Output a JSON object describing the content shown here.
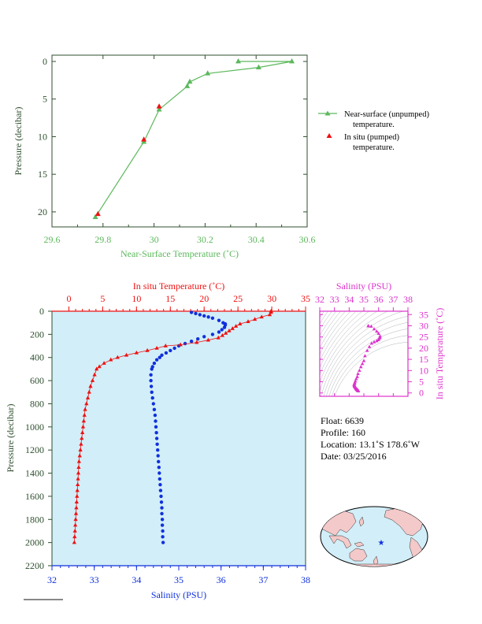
{
  "top_chart": {
    "xlabel": "Near-Surface Temperature (˚C)",
    "ylabel": "Pressure (decibar)",
    "xlim": [
      29.6,
      30.6
    ],
    "ylim": [
      0,
      22
    ],
    "xticks": [
      "29.6",
      "29.8",
      "30",
      "30.2",
      "30.4",
      "30.6"
    ],
    "yticks": [
      "0",
      "5",
      "10",
      "15",
      "20"
    ],
    "legend": [
      {
        "label_line1": "Near-surface (unpumped)",
        "label_line2": "temperature."
      },
      {
        "label_line1": "In situ (pumped)",
        "label_line2": "temperature."
      }
    ]
  },
  "main_chart": {
    "top_axis_label": "In situ Temperature (˚C)",
    "bottom_axis_label": "Salinity (PSU)",
    "ylabel": "Pressure (decibar)",
    "temp_ticks": [
      "0",
      "5",
      "10",
      "15",
      "20",
      "25",
      "30",
      "35"
    ],
    "sal_ticks": [
      "32",
      "33",
      "34",
      "35",
      "36",
      "37",
      "38"
    ],
    "pressure_ticks": [
      "0",
      "200",
      "400",
      "600",
      "800",
      "1000",
      "1200",
      "1400",
      "1600",
      "1800",
      "2000",
      "2200"
    ]
  },
  "ts_chart": {
    "top_label": "Salinity (PSU)",
    "right_label": "In situ Temperature (˚C)",
    "sal_ticks": [
      "32",
      "33",
      "34",
      "35",
      "36",
      "37",
      "38"
    ],
    "temp_ticks": [
      "0",
      "5",
      "10",
      "15",
      "20",
      "25",
      "30",
      "35"
    ]
  },
  "info": {
    "float": "Float:  6639",
    "profile": "Profile:  160",
    "location": "Location:  13.1˚S   178.6˚W",
    "date": "Date:  03/25/2016"
  },
  "colors": {
    "green": "#5cb85c",
    "red": "#ee1111",
    "blue": "#1030dd",
    "magenta": "#dd33cc",
    "plot_bg": "#d2eef8",
    "axis_dark": "#2f4f2f"
  },
  "chart_data": [
    {
      "type": "line",
      "name": "near-surface",
      "xlim": [
        29.6,
        30.6
      ],
      "ylim": [
        0,
        22
      ],
      "series": [
        {
          "name": "Near-surface (unpumped) temperature.",
          "x": [
            30.33,
            30.54,
            30.41,
            30.21,
            30.14,
            30.13,
            30.02,
            29.96,
            29.77
          ],
          "y": [
            0.0,
            0.0,
            0.8,
            1.6,
            2.7,
            3.3,
            6.4,
            10.7,
            20.7
          ]
        },
        {
          "name": "In situ (pumped) temperature.",
          "x": [
            30.02,
            29.96,
            29.78
          ],
          "y": [
            6.0,
            10.4,
            20.3
          ]
        }
      ]
    },
    {
      "type": "scatter",
      "name": "profile",
      "ylim": [
        0,
        2200
      ],
      "temp_xlim": [
        -2.5,
        35
      ],
      "sal_xlim": [
        32,
        38
      ],
      "temperature": {
        "p": [
          0,
          10,
          30,
          50,
          70,
          90,
          110,
          130,
          150,
          170,
          190,
          210,
          230,
          250,
          270,
          290,
          300,
          320,
          340,
          360,
          380,
          400,
          420,
          450,
          480,
          500,
          550,
          600,
          650,
          700,
          750,
          800,
          850,
          900,
          950,
          1000,
          1050,
          1100,
          1150,
          1200,
          1250,
          1300,
          1350,
          1400,
          1450,
          1500,
          1550,
          1600,
          1650,
          1700,
          1750,
          1800,
          1850,
          1900,
          1950,
          2000
        ],
        "t": [
          29.9,
          29.9,
          29.7,
          28.5,
          27.5,
          26.5,
          25.3,
          24.7,
          24.2,
          23.7,
          23.2,
          22.7,
          22.1,
          20.6,
          18.9,
          16.5,
          14.3,
          13.0,
          11.6,
          10.0,
          8.5,
          7.2,
          6.2,
          5.2,
          4.5,
          4.1,
          3.8,
          3.5,
          3.2,
          3.0,
          2.8,
          2.6,
          2.4,
          2.3,
          2.2,
          2.1,
          2.0,
          1.9,
          1.8,
          1.7,
          1.6,
          1.5,
          1.45,
          1.4,
          1.35,
          1.3,
          1.25,
          1.2,
          1.15,
          1.1,
          1.05,
          1.0,
          0.95,
          0.9,
          0.85,
          0.8
        ]
      },
      "salinity": {
        "p": [
          10,
          20,
          30,
          40,
          50,
          60,
          80,
          100,
          110,
          120,
          140,
          160,
          180,
          200,
          220,
          240,
          260,
          280,
          300,
          320,
          340,
          360,
          380,
          400,
          420,
          450,
          480,
          500,
          550,
          600,
          650,
          700,
          750,
          800,
          850,
          900,
          950,
          1000,
          1050,
          1100,
          1150,
          1200,
          1250,
          1300,
          1350,
          1400,
          1450,
          1500,
          1550,
          1600,
          1650,
          1700,
          1750,
          1800,
          1850,
          1900,
          1950,
          2000
        ],
        "s": [
          35.3,
          35.4,
          35.5,
          35.6,
          35.7,
          35.8,
          35.95,
          36.05,
          36.1,
          36.1,
          36.08,
          36.02,
          35.95,
          35.8,
          35.6,
          35.45,
          35.3,
          35.15,
          35.0,
          34.9,
          34.8,
          34.7,
          34.6,
          34.55,
          34.48,
          34.42,
          34.38,
          34.36,
          34.34,
          34.34,
          34.35,
          34.36,
          34.38,
          34.4,
          34.42,
          34.44,
          34.45,
          34.46,
          34.47,
          34.48,
          34.49,
          34.5,
          34.51,
          34.52,
          34.53,
          34.54,
          34.55,
          34.56,
          34.57,
          34.58,
          34.59,
          34.6,
          34.6,
          34.61,
          34.61,
          34.62,
          34.62,
          34.63
        ]
      }
    }
  ]
}
